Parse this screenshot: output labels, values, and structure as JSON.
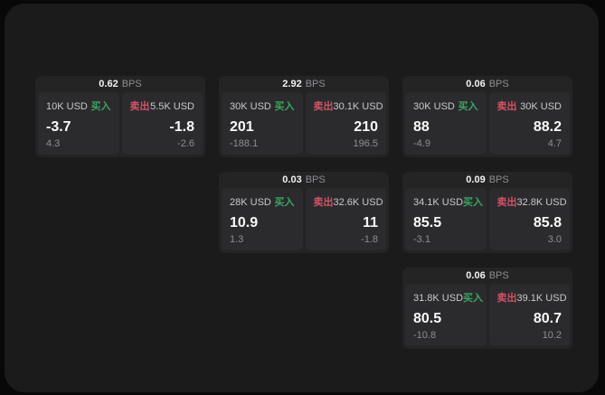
{
  "labels": {
    "bps_unit": "BPS",
    "buy": "买入",
    "sell": "卖出"
  },
  "colors": {
    "buy_green": "#3ba563",
    "sell_red": "#d15366",
    "panel_bg": "#1b1b1c",
    "card_bg": "#242425",
    "tile_bg": "#2b2b2d"
  },
  "cards": [
    {
      "row": 1,
      "col": 1,
      "bps": "0.62",
      "buy": {
        "notional": "10K USD",
        "price": "-3.7",
        "delta": "4.3"
      },
      "sell": {
        "notional": "5.5K USD",
        "price": "-1.8",
        "delta": "-2.6"
      }
    },
    {
      "row": 1,
      "col": 2,
      "bps": "2.92",
      "buy": {
        "notional": "30K USD",
        "price": "201",
        "delta": "-188.1"
      },
      "sell": {
        "notional": "30.1K USD",
        "price": "210",
        "delta": "196.5"
      }
    },
    {
      "row": 1,
      "col": 3,
      "bps": "0.06",
      "buy": {
        "notional": "30K USD",
        "price": "88",
        "delta": "-4.9"
      },
      "sell": {
        "notional": "30K USD",
        "price": "88.2",
        "delta": "4.7"
      }
    },
    {
      "row": 2,
      "col": 2,
      "bps": "0.03",
      "buy": {
        "notional": "28K USD",
        "price": "10.9",
        "delta": "1.3"
      },
      "sell": {
        "notional": "32.6K USD",
        "price": "11",
        "delta": "-1.8"
      }
    },
    {
      "row": 2,
      "col": 3,
      "bps": "0.09",
      "buy": {
        "notional": "34.1K USD",
        "price": "85.5",
        "delta": "-3.1"
      },
      "sell": {
        "notional": "32.8K USD",
        "price": "85.8",
        "delta": "3.0"
      }
    },
    {
      "row": 3,
      "col": 3,
      "bps": "0.06",
      "buy": {
        "notional": "31.8K USD",
        "price": "80.5",
        "delta": "-10.8"
      },
      "sell": {
        "notional": "39.1K USD",
        "price": "80.7",
        "delta": "10.2"
      }
    }
  ]
}
